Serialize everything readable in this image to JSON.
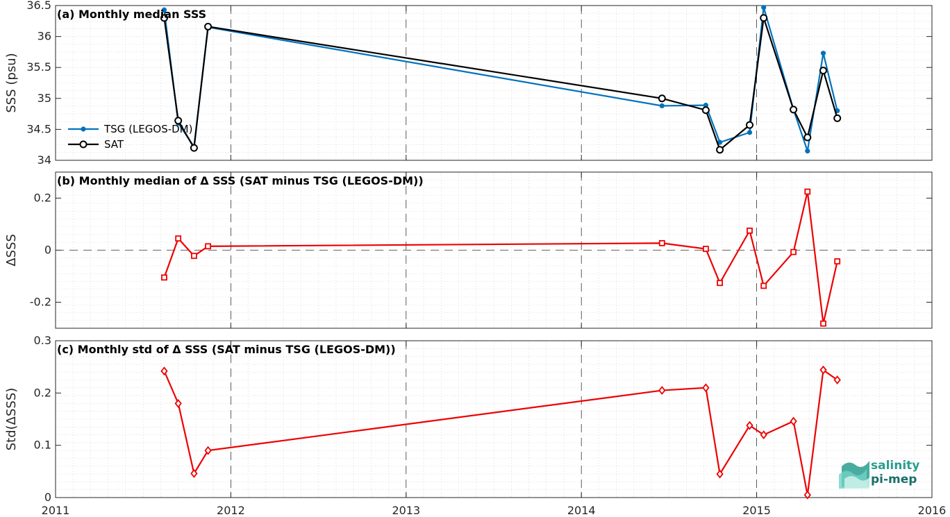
{
  "chart_data": [
    {
      "type": "line",
      "title": "(a) Monthly median SSS",
      "ylabel": "SSS (psu)",
      "xlim": [
        2011,
        2016
      ],
      "ylim": [
        34,
        36.5
      ],
      "xticks": [
        "2011",
        "2012",
        "2013",
        "2014",
        "2015",
        "2016"
      ],
      "yticks": [
        "34",
        "34.5",
        "35",
        "35.5",
        "36",
        "36.5"
      ],
      "legend": "left",
      "grid": true,
      "series": [
        {
          "name": "TSG (LEGOS-DM)",
          "color": "#0072BD",
          "marker": "dot",
          "x": [
            2011.62,
            2011.7,
            2011.79,
            2011.87,
            2014.46,
            2014.71,
            2014.79,
            2014.96,
            2015.04,
            2015.21,
            2015.29,
            2015.38,
            2015.46
          ],
          "y": [
            36.43,
            34.6,
            34.22,
            36.15,
            34.88,
            34.89,
            34.29,
            34.45,
            36.47,
            34.82,
            34.15,
            35.73,
            34.8
          ]
        },
        {
          "name": "SAT",
          "color": "#000000",
          "marker": "circle",
          "x": [
            2011.62,
            2011.7,
            2011.79,
            2011.87,
            2014.46,
            2014.71,
            2014.79,
            2014.96,
            2015.04,
            2015.21,
            2015.29,
            2015.38,
            2015.46
          ],
          "y": [
            36.3,
            34.64,
            34.2,
            36.16,
            35.0,
            34.81,
            34.17,
            34.57,
            36.3,
            34.82,
            34.37,
            35.45,
            34.68
          ]
        }
      ]
    },
    {
      "type": "line",
      "title": "(b) Monthly median of Δ SSS (SAT minus TSG (LEGOS-DM))",
      "ylabel": "ΔSSS",
      "xlim": [
        2011,
        2016
      ],
      "ylim": [
        -0.3,
        0.3
      ],
      "xticks": [
        "2011",
        "2012",
        "2013",
        "2014",
        "2015",
        "2016"
      ],
      "yticks": [
        "-0.2",
        "0",
        "0.2"
      ],
      "grid": true,
      "series": [
        {
          "color": "#EE0000",
          "marker": "square",
          "x": [
            2011.62,
            2011.7,
            2011.79,
            2011.87,
            2014.46,
            2014.71,
            2014.79,
            2014.96,
            2015.04,
            2015.21,
            2015.29,
            2015.38,
            2015.46
          ],
          "y": [
            -0.105,
            0.045,
            -0.022,
            0.015,
            0.027,
            0.005,
            -0.126,
            0.075,
            -0.137,
            -0.007,
            0.225,
            -0.282,
            -0.043
          ]
        }
      ]
    },
    {
      "type": "line",
      "title": "(c) Monthly std of Δ SSS (SAT minus TSG (LEGOS-DM))",
      "ylabel": "Std(ΔSSS)",
      "xlim": [
        2011,
        2016
      ],
      "ylim": [
        0,
        0.3
      ],
      "xticks": [
        "2011",
        "2012",
        "2013",
        "2014",
        "2015",
        "2016"
      ],
      "yticks": [
        "0",
        "0.1",
        "0.2",
        "0.3"
      ],
      "grid": true,
      "series": [
        {
          "color": "#EE0000",
          "marker": "diamond",
          "x": [
            2011.62,
            2011.7,
            2011.79,
            2011.87,
            2014.46,
            2014.71,
            2014.79,
            2014.96,
            2015.04,
            2015.21,
            2015.29,
            2015.38,
            2015.46
          ],
          "y": [
            0.242,
            0.18,
            0.046,
            0.09,
            0.205,
            0.21,
            0.045,
            0.138,
            0.12,
            0.146,
            0.005,
            0.244,
            0.225
          ]
        }
      ]
    }
  ],
  "logo": {
    "line1": "salinity",
    "line2": "pi-mep"
  }
}
